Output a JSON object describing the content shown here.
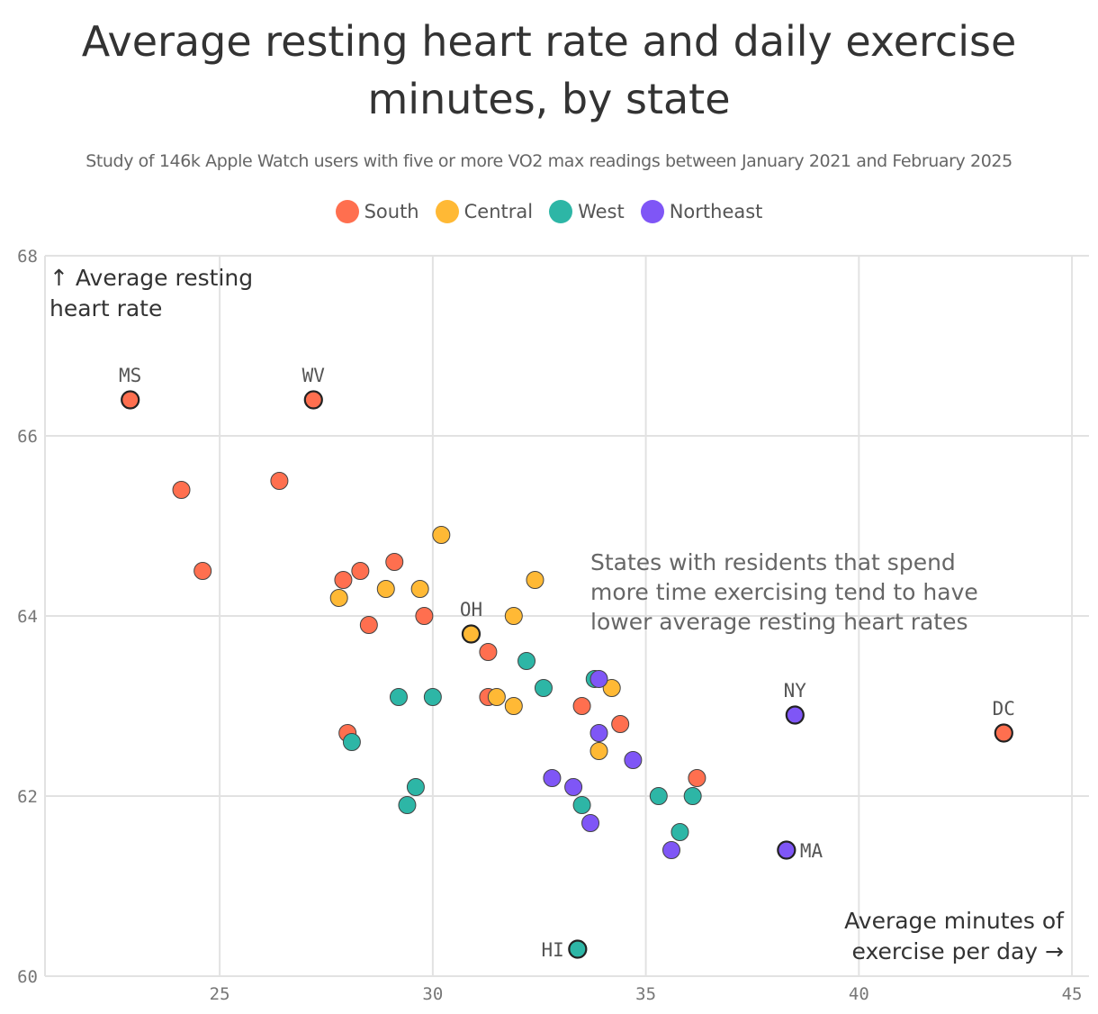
{
  "chart_data": {
    "type": "scatter",
    "title": "Average resting heart rate and daily exercise minutes, by state",
    "subtitle": "Study of 146k Apple Watch users with five or more VO2 max readings between January 2021 and February 2025",
    "xlabel": "Average minutes of exercise per day →",
    "ylabel": "↑ Average resting heart rate",
    "xlim": [
      20.9,
      45.4
    ],
    "ylim": [
      60,
      68
    ],
    "xticks": [
      25,
      30,
      35,
      40,
      45
    ],
    "yticks": [
      60,
      62,
      64,
      66,
      68
    ],
    "grid": true,
    "legend_position": "top-center",
    "annotation": "States with residents that spend more time exercising tend to have lower average resting heart rates",
    "series": [
      {
        "name": "South",
        "color": "#FF6F4F",
        "points": [
          {
            "x": 22.9,
            "y": 66.4,
            "label": "MS"
          },
          {
            "x": 27.2,
            "y": 66.4,
            "label": "WV"
          },
          {
            "x": 24.1,
            "y": 65.4
          },
          {
            "x": 26.4,
            "y": 65.5
          },
          {
            "x": 24.6,
            "y": 64.5
          },
          {
            "x": 27.9,
            "y": 64.4
          },
          {
            "x": 28.3,
            "y": 64.5
          },
          {
            "x": 29.1,
            "y": 64.6
          },
          {
            "x": 28.5,
            "y": 63.9
          },
          {
            "x": 29.8,
            "y": 64.0
          },
          {
            "x": 31.3,
            "y": 63.6
          },
          {
            "x": 31.3,
            "y": 63.1
          },
          {
            "x": 28.0,
            "y": 62.7
          },
          {
            "x": 33.5,
            "y": 63.0
          },
          {
            "x": 34.4,
            "y": 62.8
          },
          {
            "x": 36.2,
            "y": 62.2
          },
          {
            "x": 43.4,
            "y": 62.7,
            "label": "DC"
          }
        ]
      },
      {
        "name": "Central",
        "color": "#FFB935",
        "points": [
          {
            "x": 30.2,
            "y": 64.9
          },
          {
            "x": 32.4,
            "y": 64.4
          },
          {
            "x": 27.8,
            "y": 64.2
          },
          {
            "x": 28.9,
            "y": 64.3
          },
          {
            "x": 29.7,
            "y": 64.3
          },
          {
            "x": 31.9,
            "y": 64.0
          },
          {
            "x": 30.9,
            "y": 63.8,
            "label": "OH"
          },
          {
            "x": 31.5,
            "y": 63.1
          },
          {
            "x": 31.9,
            "y": 63.0
          },
          {
            "x": 34.2,
            "y": 63.2
          },
          {
            "x": 33.9,
            "y": 62.5
          }
        ]
      },
      {
        "name": "West",
        "color": "#2DB6A6",
        "points": [
          {
            "x": 28.1,
            "y": 62.6
          },
          {
            "x": 29.2,
            "y": 63.1
          },
          {
            "x": 30.0,
            "y": 63.1
          },
          {
            "x": 29.6,
            "y": 62.1
          },
          {
            "x": 29.4,
            "y": 61.9
          },
          {
            "x": 32.2,
            "y": 63.5
          },
          {
            "x": 32.6,
            "y": 63.2
          },
          {
            "x": 33.8,
            "y": 63.3
          },
          {
            "x": 33.5,
            "y": 61.9
          },
          {
            "x": 35.3,
            "y": 62.0
          },
          {
            "x": 36.1,
            "y": 62.0
          },
          {
            "x": 35.8,
            "y": 61.6
          },
          {
            "x": 33.4,
            "y": 60.3,
            "label": "HI"
          }
        ]
      },
      {
        "name": "Northeast",
        "color": "#7F56F6",
        "points": [
          {
            "x": 33.9,
            "y": 63.3
          },
          {
            "x": 33.9,
            "y": 62.7
          },
          {
            "x": 34.7,
            "y": 62.4
          },
          {
            "x": 32.8,
            "y": 62.2
          },
          {
            "x": 33.3,
            "y": 62.1
          },
          {
            "x": 33.7,
            "y": 61.7
          },
          {
            "x": 35.6,
            "y": 61.4
          },
          {
            "x": 38.5,
            "y": 62.9,
            "label": "NY"
          },
          {
            "x": 38.3,
            "y": 61.4,
            "label": "MA"
          }
        ]
      }
    ]
  }
}
